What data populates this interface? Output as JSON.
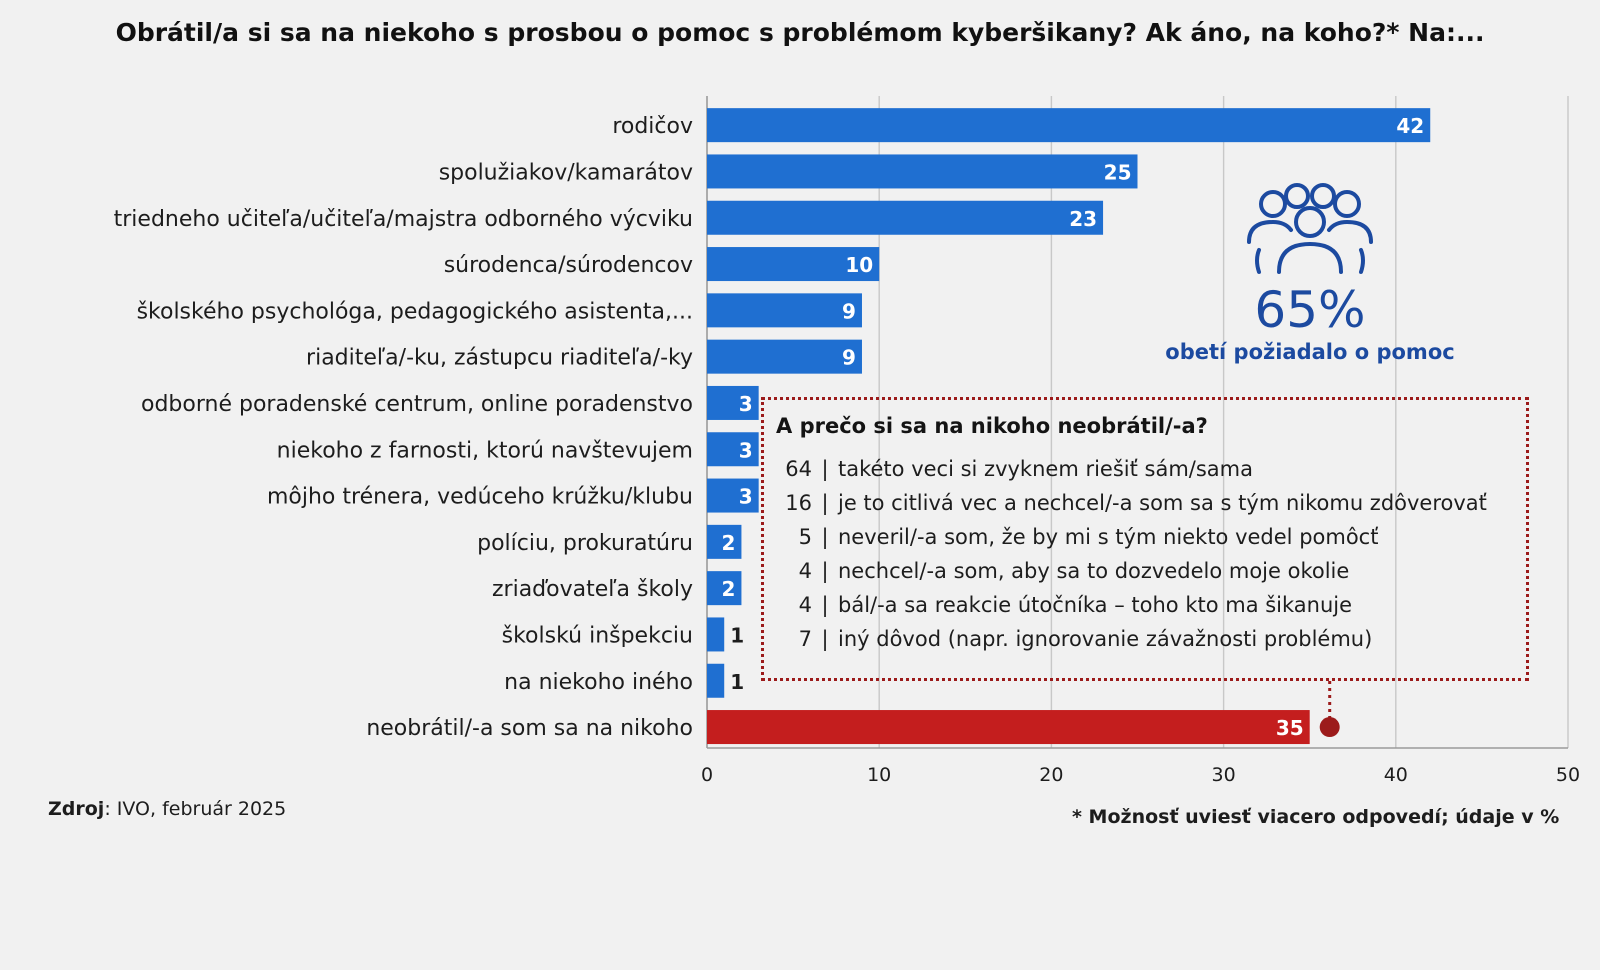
{
  "title": "Obrátil/a si sa na niekoho s prosbou o pomoc s problémom kyberšikany? Ak áno, na koho?* Na:...",
  "chart_data": {
    "type": "bar",
    "orientation": "horizontal",
    "categories": [
      "rodičov",
      "spolužiakov/kamarátov",
      "triedneho učiteľa/učiteľa/majstra odborného výcviku",
      "súrodenca/súrodencov",
      "školského psychológa, pedagogického asistenta,...",
      "riaditeľa/-ku, zástupcu riaditeľa/-ky",
      "odborné poradenské centrum, online poradenstvo",
      "niekoho z farnosti, ktorú navštevujem",
      "môjho trénera, vedúceho krúžku/klubu",
      "políciu, prokuratúru",
      "zriaďovateľa školy",
      "školskú inšpekciu",
      "na niekoho iného",
      "neobrátil/-a som sa na nikoho"
    ],
    "values": [
      42,
      25,
      23,
      10,
      9,
      9,
      3,
      3,
      3,
      2,
      2,
      1,
      1,
      35
    ],
    "bar_colors": [
      "#1f6fd1",
      "#1f6fd1",
      "#1f6fd1",
      "#1f6fd1",
      "#1f6fd1",
      "#1f6fd1",
      "#1f6fd1",
      "#1f6fd1",
      "#1f6fd1",
      "#1f6fd1",
      "#1f6fd1",
      "#1f6fd1",
      "#1f6fd1",
      "#c41e1e"
    ],
    "xlim": [
      0,
      50
    ],
    "xticks": [
      0,
      10,
      20,
      30,
      40,
      50
    ],
    "grid": true,
    "units": "%"
  },
  "callout": {
    "value": "65%",
    "text": "obetí požiadalo o pomoc",
    "icon": "people-group-icon",
    "color": "#1c4aa0"
  },
  "reasons": {
    "title": "A prečo si sa na nikoho neobrátil/-a?",
    "items": [
      {
        "value": "64",
        "text": "takéto veci si zvyknem riešiť sám/sama"
      },
      {
        "value": "16",
        "text": "je to citlivá vec a nechcel/-a som sa s tým nikomu zdôverovať"
      },
      {
        "value": "5",
        "text": "neveril/-a som, že by mi s tým niekto vedel pomôcť"
      },
      {
        "value": "4",
        "text": "nechcel/-a som, aby sa to dozvedelo moje okolie"
      },
      {
        "value": "4",
        "text": "bál/-a sa reakcie útočníka – toho kto ma šikanuje"
      },
      {
        "value": "7",
        "text": "iný dôvod (napr. ignorovanie závažnosti problému)"
      }
    ],
    "border_color": "#9c1b1b"
  },
  "source": {
    "label": "Zdroj",
    "text": ": IVO, február 2025"
  },
  "footnote": "* Možnosť uviesť viacero odpovedí; údaje v %"
}
